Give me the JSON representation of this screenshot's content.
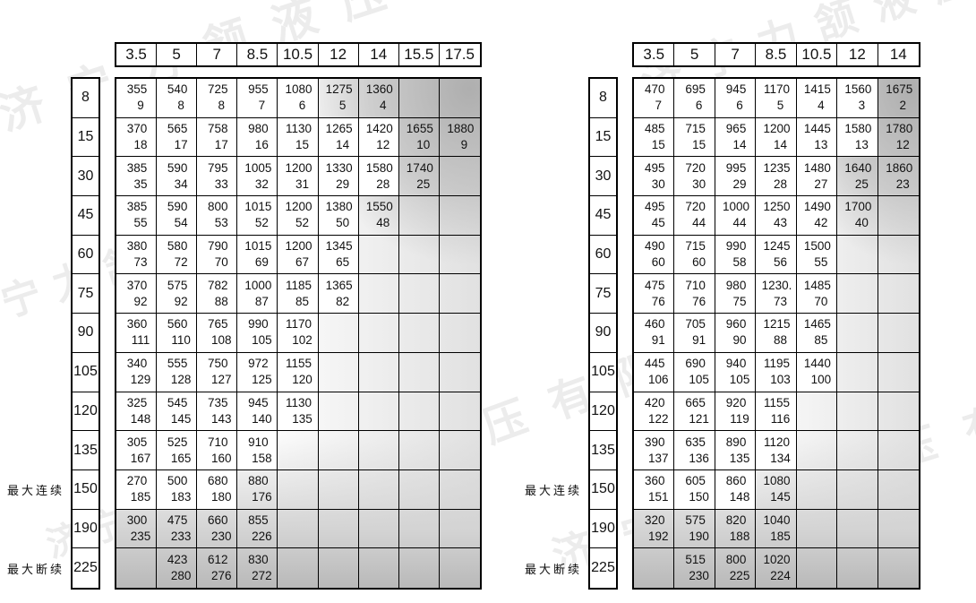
{
  "watermark": {
    "text": "济宁力颔液压有限公司",
    "color": "#cccccc"
  },
  "annotation_labels": {
    "max_continuous": "最大连续",
    "max_intermittent": "最大断续"
  },
  "tables": [
    {
      "name": "left-table",
      "columns": [
        "3.5",
        "5",
        "7",
        "8.5",
        "10.5",
        "12",
        "14",
        "15.5",
        "17.5"
      ],
      "rows": [
        {
          "label": "8",
          "side": "",
          "cells": [
            {
              "a": "355",
              "b": "9"
            },
            {
              "a": "540",
              "b": "8"
            },
            {
              "a": "725",
              "b": "8"
            },
            {
              "a": "955",
              "b": "7"
            },
            {
              "a": "1080",
              "b": "6"
            },
            {
              "a": "1275",
              "b": "5",
              "s": true
            },
            {
              "a": "1360",
              "b": "4",
              "s": true
            },
            null,
            null
          ]
        },
        {
          "label": "15",
          "side": "",
          "cells": [
            {
              "a": "370",
              "b": "18"
            },
            {
              "a": "565",
              "b": "17"
            },
            {
              "a": "758",
              "b": "17"
            },
            {
              "a": "980",
              "b": "16"
            },
            {
              "a": "1130",
              "b": "15"
            },
            {
              "a": "1265",
              "b": "14"
            },
            {
              "a": "1420",
              "b": "12"
            },
            {
              "a": "1655",
              "b": "10",
              "s": true
            },
            {
              "a": "1880",
              "b": "9",
              "s": true
            }
          ]
        },
        {
          "label": "30",
          "side": "",
          "cells": [
            {
              "a": "385",
              "b": "35"
            },
            {
              "a": "590",
              "b": "34"
            },
            {
              "a": "795",
              "b": "33"
            },
            {
              "a": "1005",
              "b": "32"
            },
            {
              "a": "1200",
              "b": "31"
            },
            {
              "a": "1330",
              "b": "29"
            },
            {
              "a": "1580",
              "b": "28"
            },
            {
              "a": "1740",
              "b": "25",
              "s": true
            },
            null
          ]
        },
        {
          "label": "45",
          "side": "",
          "cells": [
            {
              "a": "385",
              "b": "55"
            },
            {
              "a": "590",
              "b": "54"
            },
            {
              "a": "800",
              "b": "53"
            },
            {
              "a": "1015",
              "b": "52"
            },
            {
              "a": "1200",
              "b": "52"
            },
            {
              "a": "1380",
              "b": "50"
            },
            {
              "a": "1550",
              "b": "48",
              "s": true
            },
            null,
            null
          ]
        },
        {
          "label": "60",
          "side": "",
          "cells": [
            {
              "a": "380",
              "b": "73"
            },
            {
              "a": "580",
              "b": "72"
            },
            {
              "a": "790",
              "b": "70"
            },
            {
              "a": "1015",
              "b": "69"
            },
            {
              "a": "1200",
              "b": "67"
            },
            {
              "a": "1345",
              "b": "65"
            },
            null,
            null,
            null
          ]
        },
        {
          "label": "75",
          "side": "",
          "cells": [
            {
              "a": "370",
              "b": "92"
            },
            {
              "a": "575",
              "b": "92"
            },
            {
              "a": "782",
              "b": "88"
            },
            {
              "a": "1000",
              "b": "87"
            },
            {
              "a": "1185",
              "b": "85"
            },
            {
              "a": "1365",
              "b": "82"
            },
            null,
            null,
            null
          ]
        },
        {
          "label": "90",
          "side": "",
          "cells": [
            {
              "a": "360",
              "b": "111"
            },
            {
              "a": "560",
              "b": "110"
            },
            {
              "a": "765",
              "b": "108"
            },
            {
              "a": "990",
              "b": "105"
            },
            {
              "a": "1170",
              "b": "102"
            },
            null,
            null,
            null,
            null
          ]
        },
        {
          "label": "105",
          "side": "",
          "cells": [
            {
              "a": "340",
              "b": "129"
            },
            {
              "a": "555",
              "b": "128"
            },
            {
              "a": "750",
              "b": "127"
            },
            {
              "a": "972",
              "b": "125"
            },
            {
              "a": "1155",
              "b": "120"
            },
            null,
            null,
            null,
            null
          ]
        },
        {
          "label": "120",
          "side": "",
          "cells": [
            {
              "a": "325",
              "b": "148"
            },
            {
              "a": "545",
              "b": "145"
            },
            {
              "a": "735",
              "b": "143"
            },
            {
              "a": "945",
              "b": "140"
            },
            {
              "a": "1130",
              "b": "135"
            },
            null,
            null,
            null,
            null
          ]
        },
        {
          "label": "135",
          "side": "",
          "cells": [
            {
              "a": "305",
              "b": "167"
            },
            {
              "a": "525",
              "b": "165"
            },
            {
              "a": "710",
              "b": "160"
            },
            {
              "a": "910",
              "b": "158"
            },
            null,
            null,
            null,
            null,
            null
          ]
        },
        {
          "label": "150",
          "side": "最大连续",
          "cells": [
            {
              "a": "270",
              "b": "185"
            },
            {
              "a": "500",
              "b": "183"
            },
            {
              "a": "680",
              "b": "180"
            },
            {
              "a": "880",
              "b": "176",
              "s": true
            },
            null,
            null,
            null,
            null,
            null
          ]
        },
        {
          "label": "190",
          "side": "",
          "cells": [
            {
              "a": "300",
              "b": "235",
              "s": true
            },
            {
              "a": "475",
              "b": "233",
              "s": true
            },
            {
              "a": "660",
              "b": "230",
              "s": true
            },
            {
              "a": "855",
              "b": "226",
              "s": true
            },
            null,
            null,
            null,
            null,
            null
          ]
        },
        {
          "label": "225",
          "side": "最大断续",
          "cells": [
            null,
            {
              "a": "423",
              "b": "280",
              "s": true
            },
            {
              "a": "612",
              "b": "276",
              "s": true
            },
            {
              "a": "830",
              "b": "272",
              "s": true
            },
            null,
            null,
            null,
            null,
            null
          ]
        }
      ]
    },
    {
      "name": "right-table",
      "columns": [
        "3.5",
        "5",
        "7",
        "8.5",
        "10.5",
        "12",
        "14"
      ],
      "rows": [
        {
          "label": "8",
          "side": "",
          "cells": [
            {
              "a": "470",
              "b": "7"
            },
            {
              "a": "695",
              "b": "6"
            },
            {
              "a": "945",
              "b": "6"
            },
            {
              "a": "1170",
              "b": "5"
            },
            {
              "a": "1415",
              "b": "4"
            },
            {
              "a": "1560",
              "b": "3"
            },
            {
              "a": "1675",
              "b": "2",
              "s": true
            }
          ]
        },
        {
          "label": "15",
          "side": "",
          "cells": [
            {
              "a": "485",
              "b": "15"
            },
            {
              "a": "715",
              "b": "15"
            },
            {
              "a": "965",
              "b": "14"
            },
            {
              "a": "1200",
              "b": "14"
            },
            {
              "a": "1445",
              "b": "13"
            },
            {
              "a": "1580",
              "b": "13"
            },
            {
              "a": "1780",
              "b": "12",
              "s": true
            }
          ]
        },
        {
          "label": "30",
          "side": "",
          "cells": [
            {
              "a": "495",
              "b": "30"
            },
            {
              "a": "720",
              "b": "30"
            },
            {
              "a": "995",
              "b": "29"
            },
            {
              "a": "1235",
              "b": "28"
            },
            {
              "a": "1480",
              "b": "27"
            },
            {
              "a": "1640",
              "b": "25",
              "s": true
            },
            {
              "a": "1860",
              "b": "23",
              "s": true
            }
          ]
        },
        {
          "label": "45",
          "side": "",
          "cells": [
            {
              "a": "495",
              "b": "45"
            },
            {
              "a": "720",
              "b": "44"
            },
            {
              "a": "1000",
              "b": "44"
            },
            {
              "a": "1250",
              "b": "43"
            },
            {
              "a": "1490",
              "b": "42"
            },
            {
              "a": "1700",
              "b": "40",
              "s": true
            },
            null
          ]
        },
        {
          "label": "60",
          "side": "",
          "cells": [
            {
              "a": "490",
              "b": "60"
            },
            {
              "a": "715",
              "b": "60"
            },
            {
              "a": "990",
              "b": "58"
            },
            {
              "a": "1245",
              "b": "56"
            },
            {
              "a": "1500",
              "b": "55"
            },
            null,
            null
          ]
        },
        {
          "label": "75",
          "side": "",
          "cells": [
            {
              "a": "475",
              "b": "76"
            },
            {
              "a": "710",
              "b": "76"
            },
            {
              "a": "980",
              "b": "75"
            },
            {
              "a": "1230.",
              "b": "73"
            },
            {
              "a": "1485",
              "b": "70"
            },
            null,
            null
          ]
        },
        {
          "label": "90",
          "side": "",
          "cells": [
            {
              "a": "460",
              "b": "91"
            },
            {
              "a": "705",
              "b": "91"
            },
            {
              "a": "960",
              "b": "90"
            },
            {
              "a": "1215",
              "b": "88"
            },
            {
              "a": "1465",
              "b": "85"
            },
            null,
            null
          ]
        },
        {
          "label": "105",
          "side": "",
          "cells": [
            {
              "a": "445",
              "b": "106"
            },
            {
              "a": "690",
              "b": "105"
            },
            {
              "a": "940",
              "b": "105"
            },
            {
              "a": "1195",
              "b": "103"
            },
            {
              "a": "1440",
              "b": "100"
            },
            null,
            null
          ]
        },
        {
          "label": "120",
          "side": "",
          "cells": [
            {
              "a": "420",
              "b": "122"
            },
            {
              "a": "665",
              "b": "121"
            },
            {
              "a": "920",
              "b": "119"
            },
            {
              "a": "1155",
              "b": "116"
            },
            null,
            null,
            null
          ]
        },
        {
          "label": "135",
          "side": "",
          "cells": [
            {
              "a": "390",
              "b": "137"
            },
            {
              "a": "635",
              "b": "136"
            },
            {
              "a": "890",
              "b": "135"
            },
            {
              "a": "1120",
              "b": "134"
            },
            null,
            null,
            null
          ]
        },
        {
          "label": "150",
          "side": "最大连续",
          "cells": [
            {
              "a": "360",
              "b": "151"
            },
            {
              "a": "605",
              "b": "150"
            },
            {
              "a": "860",
              "b": "148"
            },
            {
              "a": "1080",
              "b": "145",
              "s": true
            },
            null,
            null,
            null
          ]
        },
        {
          "label": "190",
          "side": "",
          "cells": [
            {
              "a": "320",
              "b": "192",
              "s": true
            },
            {
              "a": "575",
              "b": "190",
              "s": true
            },
            {
              "a": "820",
              "b": "188",
              "s": true
            },
            {
              "a": "1040",
              "b": "185",
              "s": true
            },
            null,
            null,
            null
          ]
        },
        {
          "label": "225",
          "side": "最大断续",
          "cells": [
            null,
            {
              "a": "515",
              "b": "230",
              "s": true
            },
            {
              "a": "800",
              "b": "225",
              "s": true
            },
            {
              "a": "1020",
              "b": "224",
              "s": true
            },
            null,
            null,
            null
          ]
        }
      ]
    }
  ]
}
